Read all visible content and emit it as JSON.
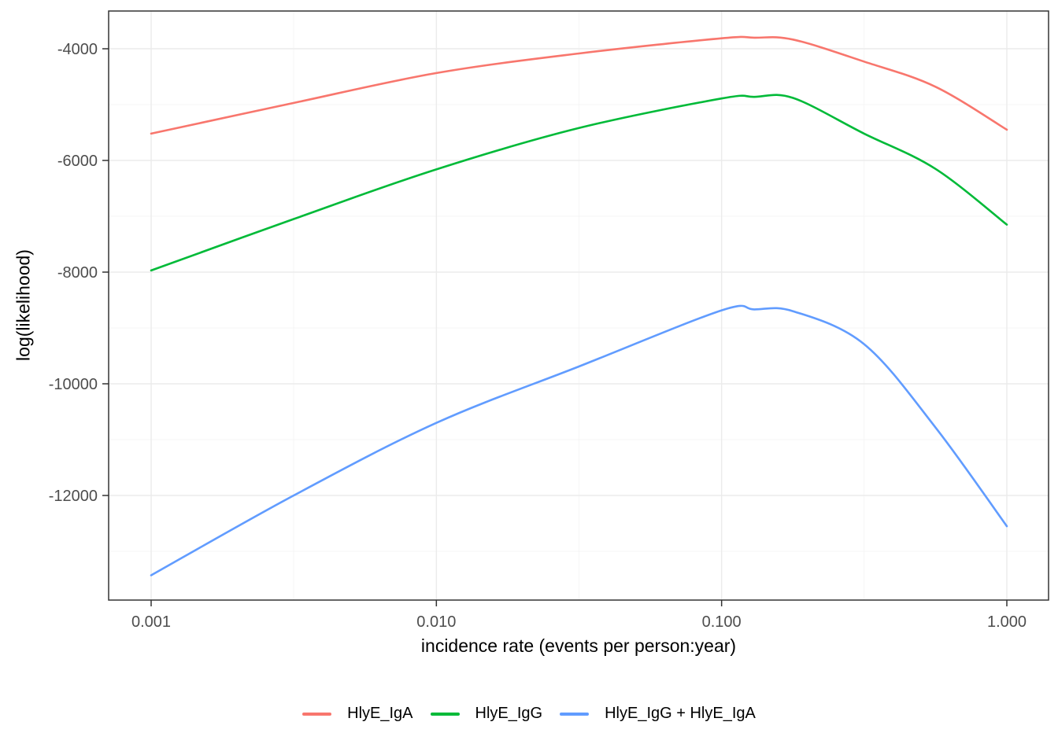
{
  "figure": {
    "background": "#FFFFFF"
  },
  "chart_data": {
    "type": "line",
    "x_scale": "log10",
    "title": "",
    "xlabel": "incidence rate (events per person:year)",
    "ylabel": "log(likelihood)",
    "x": [
      0.001,
      0.00316,
      0.01,
      0.0316,
      0.1,
      0.13,
      0.178,
      0.316,
      0.562,
      1.0
    ],
    "series": [
      {
        "name": "HlyE_IgA",
        "color": "#F8766D",
        "values": [
          -5520,
          -4970,
          -4435,
          -4085,
          -3812,
          -3802,
          -3835,
          -4230,
          -4680,
          -5450
        ]
      },
      {
        "name": "HlyE_IgG",
        "color": "#00BA38",
        "values": [
          -7970,
          -7050,
          -6160,
          -5420,
          -4890,
          -4862,
          -4880,
          -5520,
          -6150,
          -7150
        ]
      },
      {
        "name": "HlyE_IgG + HlyE_IgA",
        "color": "#619CFF",
        "values": [
          -13430,
          -12000,
          -10700,
          -9690,
          -8685,
          -8668,
          -8700,
          -9290,
          -10780,
          -12550
        ]
      }
    ],
    "x_ticks": {
      "values": [
        0.001,
        0.01,
        0.1,
        1.0
      ],
      "labels": [
        "0.001",
        "0.010",
        "0.100",
        "1.000"
      ]
    },
    "x_minor": [
      0.00316,
      0.0316,
      0.316
    ],
    "y_ticks": {
      "values": [
        -4000,
        -6000,
        -8000,
        -10000,
        -12000
      ],
      "labels": [
        "-4000",
        "-6000",
        "-8000",
        "-10000",
        "-12000"
      ]
    },
    "y_minor": [
      -5000,
      -7000,
      -9000,
      -11000,
      -13000
    ],
    "xlim": [
      0.00071,
      1.41
    ],
    "ylim": [
      -13870,
      -3325
    ],
    "grid": {
      "major_color": "#EBEBEB",
      "minor_color": "#F3F3F3",
      "major_width": 1.4,
      "minor_width": 0.8
    },
    "panel_border_color": "#333333",
    "tick_color": "#333333",
    "tick_label_color": "#4D4D4D",
    "legend_position": "bottom"
  }
}
